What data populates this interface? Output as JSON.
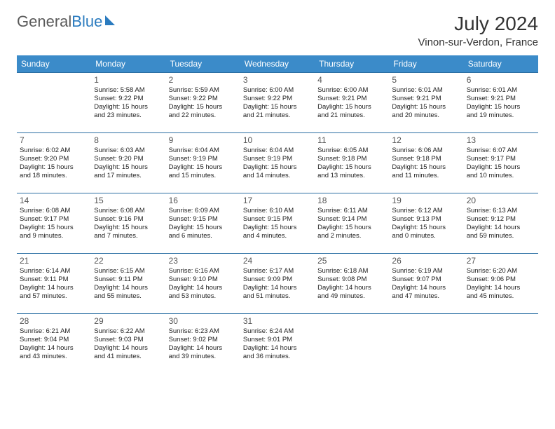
{
  "brand": {
    "part1": "General",
    "part2": "Blue"
  },
  "title": "July 2024",
  "location": "Vinon-sur-Verdon, France",
  "colors": {
    "header_bg": "#3b8bc9",
    "row_border": "#2b6fa3",
    "text": "#222222",
    "logo_gray": "#5a5a5a",
    "logo_blue": "#2b7bbf"
  },
  "weekdays": [
    "Sunday",
    "Monday",
    "Tuesday",
    "Wednesday",
    "Thursday",
    "Friday",
    "Saturday"
  ],
  "weeks": [
    [
      null,
      {
        "n": "1",
        "sr": "Sunrise: 5:58 AM",
        "ss": "Sunset: 9:22 PM",
        "d1": "Daylight: 15 hours",
        "d2": "and 23 minutes."
      },
      {
        "n": "2",
        "sr": "Sunrise: 5:59 AM",
        "ss": "Sunset: 9:22 PM",
        "d1": "Daylight: 15 hours",
        "d2": "and 22 minutes."
      },
      {
        "n": "3",
        "sr": "Sunrise: 6:00 AM",
        "ss": "Sunset: 9:22 PM",
        "d1": "Daylight: 15 hours",
        "d2": "and 21 minutes."
      },
      {
        "n": "4",
        "sr": "Sunrise: 6:00 AM",
        "ss": "Sunset: 9:21 PM",
        "d1": "Daylight: 15 hours",
        "d2": "and 21 minutes."
      },
      {
        "n": "5",
        "sr": "Sunrise: 6:01 AM",
        "ss": "Sunset: 9:21 PM",
        "d1": "Daylight: 15 hours",
        "d2": "and 20 minutes."
      },
      {
        "n": "6",
        "sr": "Sunrise: 6:01 AM",
        "ss": "Sunset: 9:21 PM",
        "d1": "Daylight: 15 hours",
        "d2": "and 19 minutes."
      }
    ],
    [
      {
        "n": "7",
        "sr": "Sunrise: 6:02 AM",
        "ss": "Sunset: 9:20 PM",
        "d1": "Daylight: 15 hours",
        "d2": "and 18 minutes."
      },
      {
        "n": "8",
        "sr": "Sunrise: 6:03 AM",
        "ss": "Sunset: 9:20 PM",
        "d1": "Daylight: 15 hours",
        "d2": "and 17 minutes."
      },
      {
        "n": "9",
        "sr": "Sunrise: 6:04 AM",
        "ss": "Sunset: 9:19 PM",
        "d1": "Daylight: 15 hours",
        "d2": "and 15 minutes."
      },
      {
        "n": "10",
        "sr": "Sunrise: 6:04 AM",
        "ss": "Sunset: 9:19 PM",
        "d1": "Daylight: 15 hours",
        "d2": "and 14 minutes."
      },
      {
        "n": "11",
        "sr": "Sunrise: 6:05 AM",
        "ss": "Sunset: 9:18 PM",
        "d1": "Daylight: 15 hours",
        "d2": "and 13 minutes."
      },
      {
        "n": "12",
        "sr": "Sunrise: 6:06 AM",
        "ss": "Sunset: 9:18 PM",
        "d1": "Daylight: 15 hours",
        "d2": "and 11 minutes."
      },
      {
        "n": "13",
        "sr": "Sunrise: 6:07 AM",
        "ss": "Sunset: 9:17 PM",
        "d1": "Daylight: 15 hours",
        "d2": "and 10 minutes."
      }
    ],
    [
      {
        "n": "14",
        "sr": "Sunrise: 6:08 AM",
        "ss": "Sunset: 9:17 PM",
        "d1": "Daylight: 15 hours",
        "d2": "and 9 minutes."
      },
      {
        "n": "15",
        "sr": "Sunrise: 6:08 AM",
        "ss": "Sunset: 9:16 PM",
        "d1": "Daylight: 15 hours",
        "d2": "and 7 minutes."
      },
      {
        "n": "16",
        "sr": "Sunrise: 6:09 AM",
        "ss": "Sunset: 9:15 PM",
        "d1": "Daylight: 15 hours",
        "d2": "and 6 minutes."
      },
      {
        "n": "17",
        "sr": "Sunrise: 6:10 AM",
        "ss": "Sunset: 9:15 PM",
        "d1": "Daylight: 15 hours",
        "d2": "and 4 minutes."
      },
      {
        "n": "18",
        "sr": "Sunrise: 6:11 AM",
        "ss": "Sunset: 9:14 PM",
        "d1": "Daylight: 15 hours",
        "d2": "and 2 minutes."
      },
      {
        "n": "19",
        "sr": "Sunrise: 6:12 AM",
        "ss": "Sunset: 9:13 PM",
        "d1": "Daylight: 15 hours",
        "d2": "and 0 minutes."
      },
      {
        "n": "20",
        "sr": "Sunrise: 6:13 AM",
        "ss": "Sunset: 9:12 PM",
        "d1": "Daylight: 14 hours",
        "d2": "and 59 minutes."
      }
    ],
    [
      {
        "n": "21",
        "sr": "Sunrise: 6:14 AM",
        "ss": "Sunset: 9:11 PM",
        "d1": "Daylight: 14 hours",
        "d2": "and 57 minutes."
      },
      {
        "n": "22",
        "sr": "Sunrise: 6:15 AM",
        "ss": "Sunset: 9:11 PM",
        "d1": "Daylight: 14 hours",
        "d2": "and 55 minutes."
      },
      {
        "n": "23",
        "sr": "Sunrise: 6:16 AM",
        "ss": "Sunset: 9:10 PM",
        "d1": "Daylight: 14 hours",
        "d2": "and 53 minutes."
      },
      {
        "n": "24",
        "sr": "Sunrise: 6:17 AM",
        "ss": "Sunset: 9:09 PM",
        "d1": "Daylight: 14 hours",
        "d2": "and 51 minutes."
      },
      {
        "n": "25",
        "sr": "Sunrise: 6:18 AM",
        "ss": "Sunset: 9:08 PM",
        "d1": "Daylight: 14 hours",
        "d2": "and 49 minutes."
      },
      {
        "n": "26",
        "sr": "Sunrise: 6:19 AM",
        "ss": "Sunset: 9:07 PM",
        "d1": "Daylight: 14 hours",
        "d2": "and 47 minutes."
      },
      {
        "n": "27",
        "sr": "Sunrise: 6:20 AM",
        "ss": "Sunset: 9:06 PM",
        "d1": "Daylight: 14 hours",
        "d2": "and 45 minutes."
      }
    ],
    [
      {
        "n": "28",
        "sr": "Sunrise: 6:21 AM",
        "ss": "Sunset: 9:04 PM",
        "d1": "Daylight: 14 hours",
        "d2": "and 43 minutes."
      },
      {
        "n": "29",
        "sr": "Sunrise: 6:22 AM",
        "ss": "Sunset: 9:03 PM",
        "d1": "Daylight: 14 hours",
        "d2": "and 41 minutes."
      },
      {
        "n": "30",
        "sr": "Sunrise: 6:23 AM",
        "ss": "Sunset: 9:02 PM",
        "d1": "Daylight: 14 hours",
        "d2": "and 39 minutes."
      },
      {
        "n": "31",
        "sr": "Sunrise: 6:24 AM",
        "ss": "Sunset: 9:01 PM",
        "d1": "Daylight: 14 hours",
        "d2": "and 36 minutes."
      },
      null,
      null,
      null
    ]
  ]
}
